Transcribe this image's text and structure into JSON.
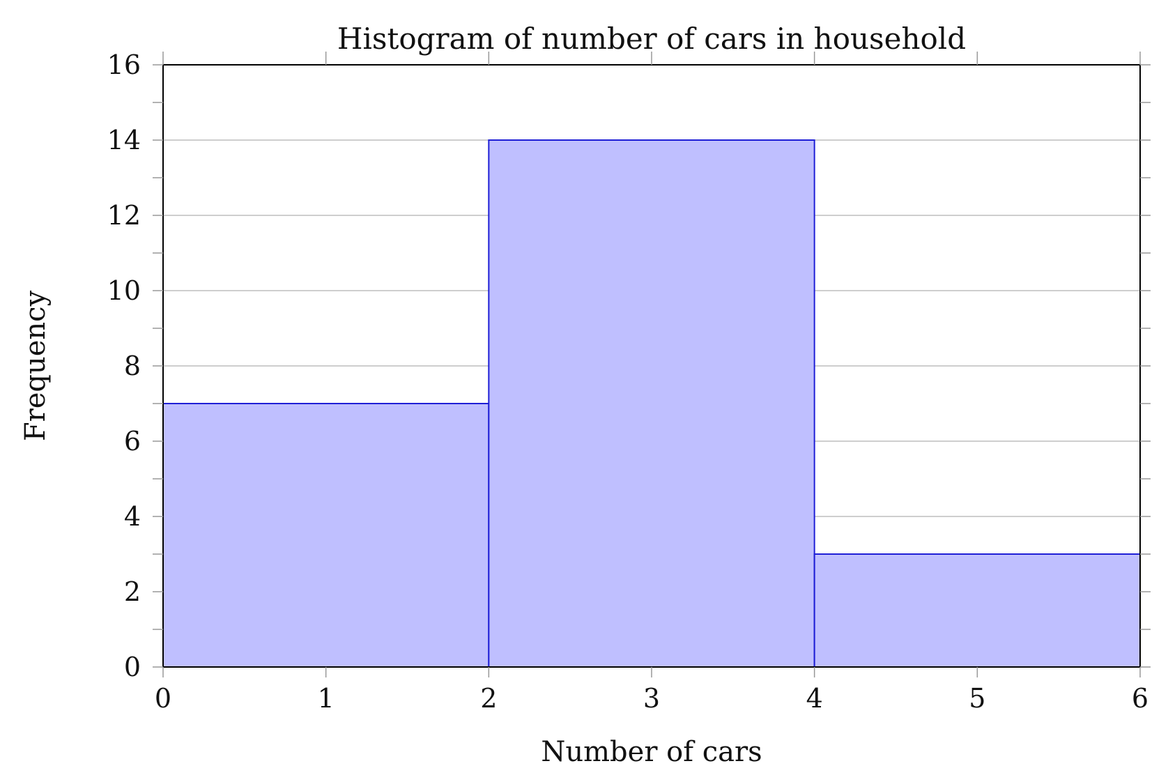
{
  "chart_data": {
    "type": "bar",
    "title": "Histogram of number of cars in household",
    "xlabel": "Number of cars",
    "ylabel": "Frequency",
    "bins": [
      {
        "x0": 0,
        "x1": 2,
        "value": 7
      },
      {
        "x0": 2,
        "x1": 4,
        "value": 14
      },
      {
        "x0": 4,
        "x1": 6,
        "value": 3
      }
    ],
    "xlim": [
      0,
      6
    ],
    "ylim": [
      0,
      16
    ],
    "xticks": [
      0,
      1,
      2,
      3,
      4,
      5,
      6
    ],
    "yticks": [
      0,
      2,
      4,
      6,
      8,
      10,
      12,
      14,
      16
    ],
    "grid": true,
    "colors": {
      "bar_fill": "#bfbfff",
      "bar_stroke": "#1f1fd6",
      "grid": "#bdbdbd",
      "axis": "#000000"
    }
  }
}
